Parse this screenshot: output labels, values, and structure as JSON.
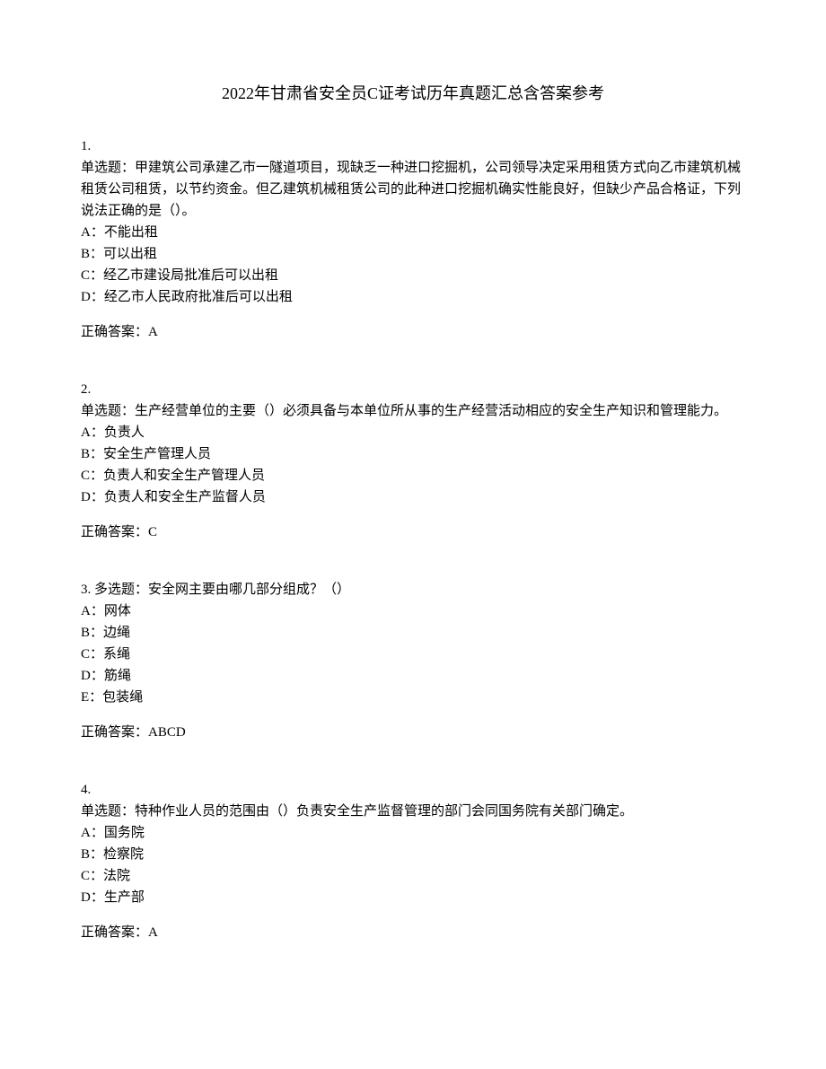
{
  "title": "2022年甘肃省安全员C证考试历年真题汇总含答案参考",
  "questions": [
    {
      "number": "1.",
      "type": "单选题：",
      "text": "甲建筑公司承建乙市一隧道项目，现缺乏一种进口挖掘机，公司领导决定采用租赁方式向乙市建筑机械租赁公司租赁，以节约资金。但乙建筑机械租赁公司的此种进口挖掘机确实性能良好，但缺少产品合格证，下列说法正确的是（）。",
      "options": [
        "A：不能出租",
        "B：可以出租",
        "C：经乙市建设局批准后可以出租",
        "D：经乙市人民政府批准后可以出租"
      ],
      "answer": "正确答案：A"
    },
    {
      "number": "2.",
      "type": "单选题：",
      "text": "生产经营单位的主要（）必须具备与本单位所从事的生产经营活动相应的安全生产知识和管理能力。",
      "options": [
        "A：负责人",
        "B：安全生产管理人员",
        "C：负责人和安全生产管理人员",
        "D：负责人和安全生产监督人员"
      ],
      "answer": "正确答案：C"
    },
    {
      "number": "3. ",
      "type": "多选题：",
      "text": "安全网主要由哪几部分组成？（）",
      "options": [
        "A：网体",
        "B：边绳",
        "C：系绳",
        "D：筋绳",
        "E：包装绳"
      ],
      "answer": "正确答案：ABCD"
    },
    {
      "number": "4.",
      "type": "单选题：",
      "text": "特种作业人员的范围由（）负责安全生产监督管理的部门会同国务院有关部门确定。",
      "options": [
        "A：国务院",
        "B：检察院",
        "C：法院",
        "D：生产部"
      ],
      "answer": "正确答案：A"
    }
  ]
}
